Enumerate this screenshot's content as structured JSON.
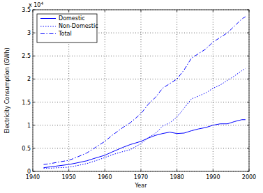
{
  "chart_data": {
    "type": "line",
    "x_label": "Year",
    "y_label": "Electricity Consumption (GWh)",
    "annotations": [
      {
        "text": "x 10",
        "superscript": "4"
      }
    ],
    "x": [
      1943,
      1945,
      1947,
      1950,
      1952,
      1955,
      1957,
      1960,
      1962,
      1965,
      1967,
      1970,
      1972,
      1974,
      1976,
      1978,
      1980,
      1982,
      1984,
      1986,
      1988,
      1990,
      1992,
      1994,
      1996,
      1998,
      1999
    ],
    "series": [
      {
        "name": "Domestic",
        "color": "#0000ff",
        "line_style": "solid",
        "values": [
          0.08,
          0.1,
          0.12,
          0.15,
          0.18,
          0.23,
          0.28,
          0.35,
          0.42,
          0.52,
          0.58,
          0.65,
          0.72,
          0.78,
          0.82,
          0.85,
          0.82,
          0.83,
          0.88,
          0.92,
          0.95,
          1.0,
          1.03,
          1.03,
          1.08,
          1.12,
          1.12
        ]
      },
      {
        "name": "Non-Domestic",
        "color": "#0000ff",
        "line_style": "dotted",
        "values": [
          0.07,
          0.07,
          0.08,
          0.09,
          0.12,
          0.17,
          0.22,
          0.3,
          0.36,
          0.43,
          0.47,
          0.6,
          0.73,
          0.82,
          0.98,
          1.05,
          1.18,
          1.37,
          1.57,
          1.63,
          1.7,
          1.8,
          1.87,
          1.97,
          2.07,
          2.18,
          2.23
        ]
      },
      {
        "name": "Total",
        "color": "#0000ff",
        "line_style": "dashdot",
        "values": [
          0.15,
          0.17,
          0.2,
          0.24,
          0.3,
          0.4,
          0.5,
          0.65,
          0.78,
          0.95,
          1.05,
          1.25,
          1.45,
          1.6,
          1.8,
          1.9,
          2.0,
          2.2,
          2.45,
          2.55,
          2.65,
          2.8,
          2.9,
          3.0,
          3.15,
          3.3,
          3.35
        ]
      }
    ],
    "xlim": [
      1940,
      2000
    ],
    "xticks": [
      1940,
      1950,
      1960,
      1970,
      1980,
      1990,
      2000
    ],
    "ylim": [
      0,
      3.5
    ],
    "yticks": [
      0,
      0.5,
      1,
      1.5,
      2,
      2.5,
      3,
      3.5
    ],
    "grid": true,
    "legend": "upper left"
  }
}
